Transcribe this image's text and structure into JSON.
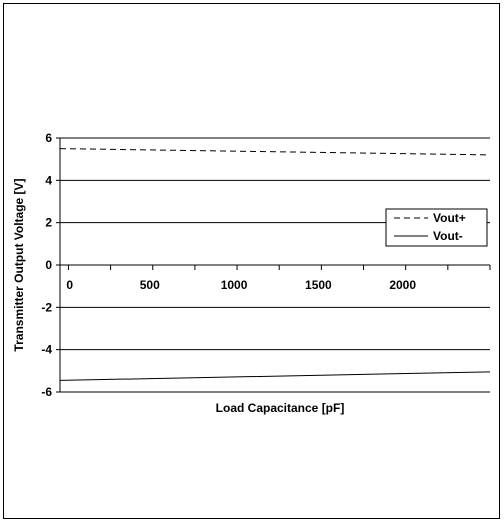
{
  "chart_data": {
    "type": "line",
    "xlabel": "Load Capacitance [pF]",
    "ylabel": "Transmitter Output Voltage [V]",
    "xlim": [
      -50,
      2500
    ],
    "ylim": [
      -6,
      6
    ],
    "x_ticks": [
      0,
      500,
      1000,
      1500,
      2000
    ],
    "y_ticks": [
      -6,
      -4,
      -2,
      0,
      2,
      4,
      6
    ],
    "grid": "horizontal",
    "legend_position": "right",
    "series": [
      {
        "name": "Vout+",
        "style": "dashed",
        "color": "#000000",
        "x": [
          -50,
          2500
        ],
        "y": [
          5.5,
          5.2
        ]
      },
      {
        "name": "Vout-",
        "style": "solid",
        "color": "#000000",
        "x": [
          -50,
          2500
        ],
        "y": [
          -5.45,
          -5.05
        ]
      }
    ]
  }
}
